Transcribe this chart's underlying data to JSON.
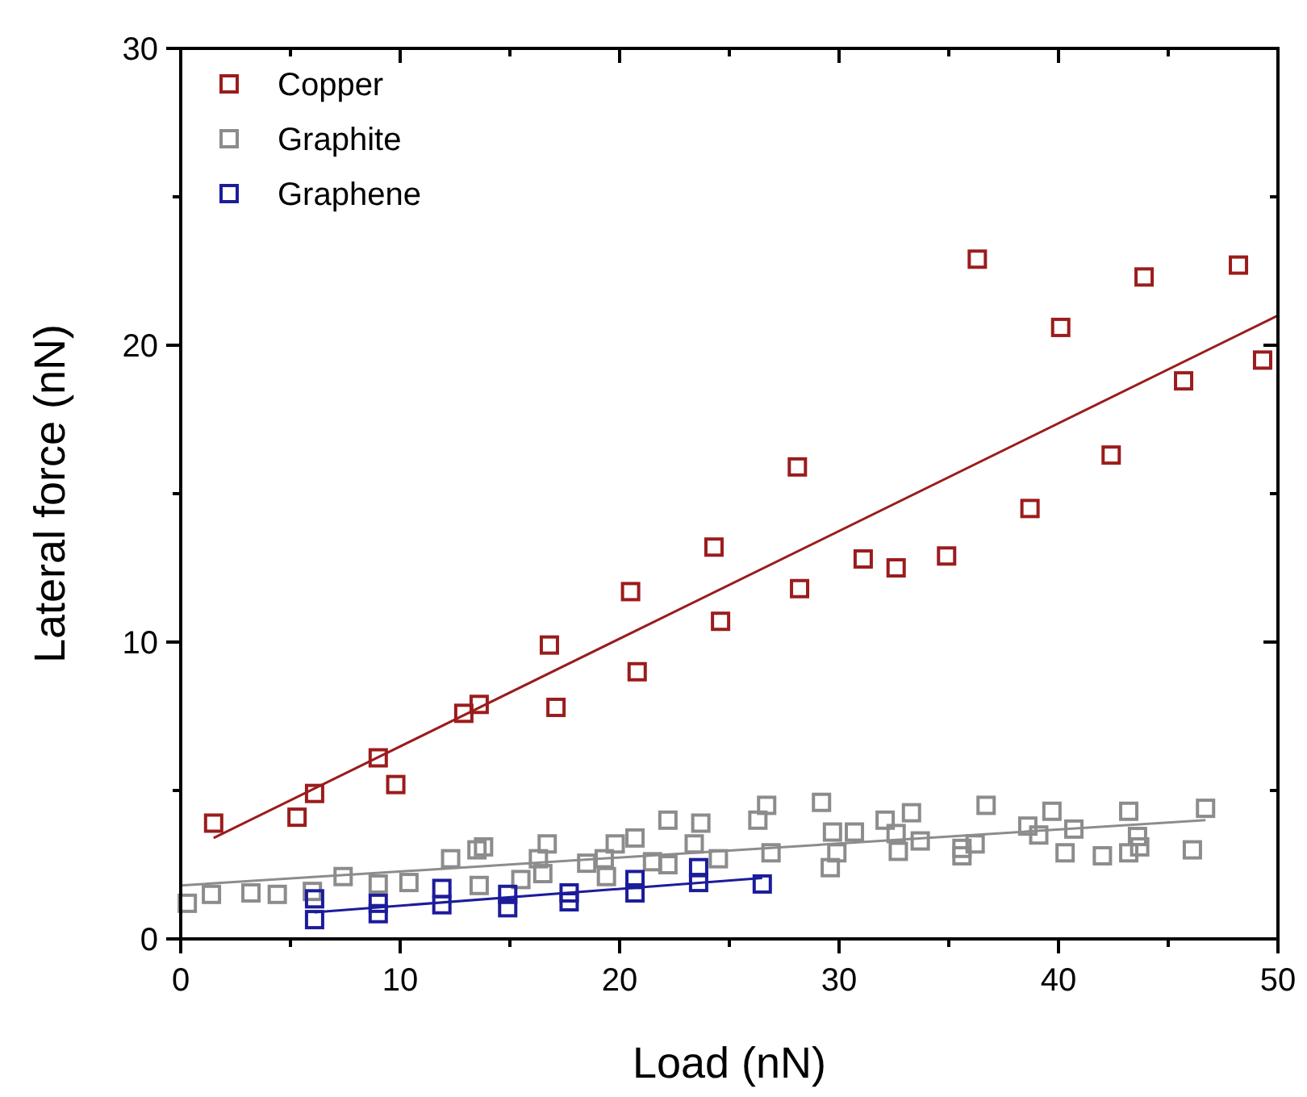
{
  "chart_data": {
    "type": "scatter",
    "xlabel": "Load (nN)",
    "ylabel": "Lateral force (nN)",
    "xlim": [
      0,
      50
    ],
    "ylim": [
      0,
      30
    ],
    "xticks": [
      0,
      {
        "value": 5,
        "label": null
      },
      10,
      {
        "value": 15,
        "label": null
      },
      20,
      {
        "value": 25,
        "label": null
      },
      30,
      {
        "value": 35,
        "label": null
      },
      40,
      {
        "value": 45,
        "label": null
      },
      50
    ],
    "yticks": [
      0,
      {
        "value": 5,
        "label": null
      },
      10,
      {
        "value": 15,
        "label": null
      },
      20,
      {
        "value": 25,
        "label": null
      },
      30
    ],
    "grid": false,
    "legend": "top left",
    "series": [
      {
        "name": "Copper",
        "marker": "square",
        "color": "#9b1c1c",
        "x": [
          1.5,
          5.3,
          6.1,
          9.0,
          9.8,
          12.9,
          13.6,
          16.8,
          17.1,
          20.5,
          20.8,
          24.3,
          24.6,
          28.1,
          28.2,
          31.1,
          32.6,
          34.9,
          36.3,
          38.7,
          40.1,
          42.4,
          43.9,
          45.7,
          48.2,
          49.3
        ],
        "values": [
          3.9,
          4.1,
          4.9,
          6.1,
          5.2,
          7.6,
          7.9,
          9.9,
          7.8,
          11.7,
          9.0,
          13.2,
          10.7,
          15.9,
          11.8,
          12.8,
          12.5,
          12.9,
          22.9,
          14.5,
          20.6,
          16.3,
          22.3,
          18.8,
          22.7,
          19.5
        ]
      },
      {
        "name": "Graphite",
        "marker": "square",
        "color": "#8c8c8c",
        "x": [
          0.3,
          1.4,
          3.2,
          4.4,
          6.0,
          7.4,
          9.0,
          10.4,
          12.3,
          13.5,
          13.8,
          13.6,
          15.5,
          16.3,
          16.5,
          16.7,
          18.5,
          19.3,
          19.4,
          19.8,
          20.7,
          21.5,
          22.2,
          22.2,
          23.4,
          23.7,
          24.5,
          26.3,
          26.7,
          26.9,
          29.2,
          29.7,
          29.9,
          29.6,
          30.7,
          32.1,
          32.6,
          32.7,
          33.3,
          33.7,
          35.6,
          35.6,
          36.2,
          36.7,
          38.6,
          39.1,
          39.7,
          40.3,
          40.7,
          42.0,
          43.2,
          43.2,
          43.6,
          43.7,
          46.1,
          46.7
        ],
        "values": [
          1.2,
          1.5,
          1.55,
          1.5,
          1.6,
          2.1,
          1.85,
          1.9,
          2.7,
          3.0,
          3.1,
          1.8,
          2.0,
          2.7,
          2.2,
          3.2,
          2.55,
          2.7,
          2.1,
          3.2,
          3.4,
          2.6,
          2.5,
          4.0,
          3.2,
          3.9,
          2.7,
          4.0,
          4.5,
          2.9,
          4.6,
          3.6,
          2.9,
          2.4,
          3.6,
          4.0,
          3.55,
          2.95,
          4.25,
          3.3,
          2.8,
          3.05,
          3.2,
          4.5,
          3.8,
          3.5,
          4.3,
          2.9,
          3.7,
          2.8,
          4.3,
          2.9,
          3.45,
          3.1,
          3.0,
          4.4
        ]
      },
      {
        "name": "Graphene",
        "marker": "square",
        "color": "#1c1c9b",
        "x": [
          6.1,
          6.1,
          9.0,
          9.0,
          11.9,
          11.9,
          14.9,
          14.9,
          17.7,
          17.7,
          20.7,
          20.7,
          23.6,
          23.6,
          26.5
        ],
        "values": [
          1.35,
          0.65,
          1.2,
          0.85,
          1.7,
          1.15,
          1.5,
          1.05,
          1.55,
          1.25,
          2.0,
          1.55,
          2.4,
          1.9,
          1.85
        ]
      },
      {
        "type": "line",
        "marker": "none",
        "color": "#9b1c1c",
        "x": [
          1.5,
          50
        ],
        "values": [
          3.4,
          21.0
        ]
      },
      {
        "type": "line",
        "marker": "none",
        "color": "#8c8c8c",
        "x": [
          0,
          46.7
        ],
        "values": [
          1.8,
          4.0
        ]
      },
      {
        "type": "line",
        "marker": "none",
        "color": "#1c1c9b",
        "x": [
          6.1,
          26.5
        ],
        "values": [
          0.9,
          2.05
        ]
      }
    ]
  }
}
